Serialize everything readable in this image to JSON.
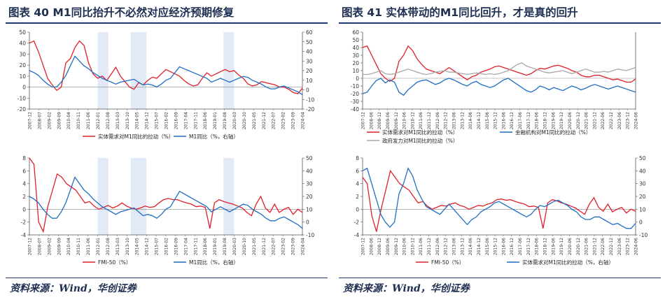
{
  "left": {
    "title": "图表 40   M1同比抬升不必然对应经济预期修复",
    "source": "资料来源：Wind，华创证券"
  },
  "right": {
    "title": "图表 41   实体带动的M1同比回升，才是真的回升",
    "source": "资料来源：Wind，华创证券"
  },
  "colors": {
    "red": "#e0202a",
    "blue": "#1f6fc4",
    "gray": "#a8a8a8",
    "shade": "#dde6f6"
  },
  "chart_data": [
    {
      "id": "c40a",
      "type": "line",
      "ylim": [
        -20,
        50
      ],
      "yticks": [
        -20,
        -10,
        0,
        10,
        20,
        30,
        40,
        50
      ],
      "y2lim": [
        -20,
        60
      ],
      "y2ticks": [
        -20,
        -10,
        0,
        10,
        20,
        30,
        40,
        50,
        60
      ],
      "xlabels": [
        "2007-12",
        "2008-07",
        "2009-02",
        "2009-09",
        "2010-04",
        "2010-11",
        "2011-06",
        "2012-01",
        "2012-08",
        "2013-03",
        "2013-10",
        "2014-05",
        "2014-12",
        "2015-07",
        "2016-02",
        "2016-09",
        "2017-04",
        "2017-11",
        "2018-06",
        "2019-01",
        "2019-08",
        "2020-03",
        "2020-10",
        "2021-05",
        "2021-12",
        "2022-07",
        "2023-02",
        "2023-09",
        "2024-04"
      ],
      "shaded": [
        [
          7.0,
          8.1
        ],
        [
          10.4,
          12.0
        ],
        [
          19.9,
          21.0
        ]
      ],
      "legend": [
        "实体需求对M1同比的拉动（%）",
        "M1同比（%，右轴）"
      ],
      "series": [
        {
          "name": "实体需求对M1同比的拉动（%）",
          "axis": "left",
          "color": "red",
          "values": [
            40,
            42,
            32,
            20,
            8,
            2,
            -3,
            0,
            22,
            26,
            36,
            42,
            38,
            22,
            12,
            8,
            10,
            6,
            12,
            18,
            10,
            5,
            0,
            -2,
            4,
            2,
            6,
            9,
            8,
            12,
            16,
            14,
            12,
            10,
            6,
            3,
            1,
            2,
            8,
            13,
            10,
            12,
            14,
            16,
            14,
            15,
            11,
            8,
            3,
            1,
            2,
            5,
            4,
            3,
            2,
            0,
            0,
            -2,
            -5,
            -6,
            -1
          ]
        },
        {
          "name": "M1同比（%，右轴）",
          "axis": "right",
          "color": "blue",
          "values": [
            20,
            18,
            15,
            10,
            6,
            3,
            3,
            8,
            15,
            25,
            35,
            30,
            25,
            22,
            18,
            15,
            12,
            10,
            8,
            6,
            8,
            9,
            10,
            11,
            8,
            5,
            6,
            5,
            3,
            6,
            10,
            12,
            18,
            24,
            22,
            20,
            18,
            16,
            14,
            12,
            8,
            10,
            12,
            10,
            8,
            10,
            12,
            14,
            13,
            10,
            8,
            6,
            3,
            1,
            1,
            3,
            4,
            2,
            0,
            -2,
            -5
          ]
        }
      ]
    },
    {
      "id": "c40b",
      "type": "line",
      "ylim": [
        -4,
        8
      ],
      "yticks": [
        -4,
        -2,
        0,
        2,
        4,
        6,
        8
      ],
      "y2lim": [
        -10,
        50
      ],
      "y2ticks": [
        -10,
        0,
        10,
        20,
        30,
        40,
        50
      ],
      "xlabels": [
        "2007-12",
        "2008-07",
        "2009-02",
        "2009-09",
        "2010-04",
        "2010-11",
        "2011-06",
        "2012-01",
        "2012-08",
        "2013-03",
        "2013-10",
        "2014-05",
        "2014-12",
        "2015-07",
        "2016-02",
        "2016-09",
        "2017-04",
        "2017-11",
        "2018-06",
        "2019-01",
        "2019-08",
        "2020-03",
        "2020-10",
        "2021-05",
        "2021-12",
        "2022-07",
        "2023-02",
        "2023-09",
        "2024-04"
      ],
      "shaded": [
        [
          7.0,
          8.1
        ],
        [
          10.4,
          12.0
        ],
        [
          19.9,
          21.0
        ]
      ],
      "legend": [
        "FMI-50（%）",
        "M1同比（%，右轴）"
      ],
      "series": [
        {
          "name": "FMI-50（%）",
          "axis": "left",
          "color": "red",
          "values": [
            8,
            7,
            -2,
            -3.5,
            0.5,
            3,
            5.5,
            5,
            4,
            3.5,
            3,
            2,
            1,
            1.2,
            0.5,
            0,
            0.3,
            0.6,
            0.2,
            0.5,
            1,
            0.5,
            0.2,
            0,
            0.2,
            0.5,
            0.3,
            0.4,
            1,
            1.5,
            1.7,
            1.5,
            1.5,
            1.2,
            1,
            0.8,
            0.4,
            0.5,
            0.3,
            -3,
            1,
            1.5,
            1.2,
            1,
            0.8,
            0.5,
            0.2,
            -0.5,
            -1,
            0.8,
            2,
            0.2,
            -0.5,
            0.8,
            -0.5,
            0,
            0.3,
            -0.8,
            0,
            -0.5
          ]
        },
        {
          "name": "M1同比（%，右轴）",
          "axis": "right",
          "color": "blue",
          "values": [
            20,
            18,
            15,
            10,
            6,
            3,
            3,
            8,
            15,
            25,
            35,
            30,
            25,
            22,
            18,
            15,
            12,
            10,
            8,
            6,
            8,
            9,
            10,
            11,
            8,
            5,
            6,
            5,
            3,
            6,
            10,
            12,
            18,
            24,
            22,
            20,
            18,
            16,
            14,
            12,
            8,
            10,
            12,
            10,
            8,
            10,
            12,
            14,
            13,
            10,
            8,
            6,
            3,
            1,
            1,
            3,
            4,
            2,
            0,
            -2,
            -5
          ]
        }
      ]
    },
    {
      "id": "c41a",
      "type": "line",
      "ylim": [
        -40,
        60
      ],
      "yticks": [
        -40,
        -30,
        -20,
        -10,
        0,
        10,
        20,
        30,
        40,
        50,
        60
      ],
      "xlabels": [
        "2007-12",
        "2008-06",
        "2008-12",
        "2009-06",
        "2009-12",
        "2010-06",
        "2010-12",
        "2011-06",
        "2011-12",
        "2012-06",
        "2012-12",
        "2013-06",
        "2013-12",
        "2014-06",
        "2014-12",
        "2015-06",
        "2015-12",
        "2016-06",
        "2016-12",
        "2017-06",
        "2017-12",
        "2018-06",
        "2018-12",
        "2019-06",
        "2019-12",
        "2020-06",
        "2020-12",
        "2021-06",
        "2021-12",
        "2022-06",
        "2022-12",
        "2023-06",
        "2023-12",
        "2024-06"
      ],
      "shaded": [],
      "legend": [
        "实体需求对M1同比的拉动（%）",
        "金融机构对M1同比的拉动（%）",
        "政府发力对M1同比的拉动（%）"
      ],
      "series": [
        {
          "name": "实体需求对M1同比的拉动（%）",
          "axis": "left",
          "color": "red",
          "values": [
            40,
            42,
            30,
            18,
            6,
            0,
            -4,
            0,
            22,
            30,
            42,
            36,
            25,
            18,
            12,
            10,
            8,
            6,
            10,
            14,
            10,
            6,
            2,
            -2,
            2,
            4,
            8,
            10,
            12,
            15,
            16,
            14,
            12,
            10,
            8,
            6,
            4,
            6,
            10,
            13,
            12,
            14,
            16,
            17,
            15,
            13,
            10,
            8,
            4,
            2,
            2,
            4,
            4,
            2,
            0,
            -2,
            -1,
            -3,
            -5,
            -5,
            -1
          ]
        },
        {
          "name": "金融机构对M1同比的拉动（%）",
          "axis": "left",
          "color": "blue",
          "values": [
            -20,
            -18,
            -10,
            -3,
            0,
            -6,
            -2,
            -5,
            -18,
            -22,
            -15,
            -10,
            -5,
            -3,
            -2,
            -5,
            -8,
            -6,
            -2,
            0,
            -2,
            -5,
            -8,
            -10,
            -6,
            -4,
            -8,
            -10,
            -12,
            -10,
            -6,
            -2,
            0,
            -4,
            -8,
            -12,
            -16,
            -18,
            -15,
            -10,
            -12,
            -15,
            -12,
            -14,
            -16,
            -13,
            -10,
            -12,
            -15,
            -13,
            -10,
            -8,
            -10,
            -12,
            -14,
            -12,
            -10,
            -12,
            -14,
            -16,
            -18
          ]
        },
        {
          "name": "政府发力对M1同比的拉动（%）",
          "axis": "left",
          "color": "gray",
          "values": [
            5,
            5,
            6,
            8,
            10,
            6,
            5,
            6,
            8,
            10,
            12,
            10,
            8,
            6,
            5,
            6,
            8,
            9,
            10,
            8,
            8,
            7,
            6,
            5,
            6,
            7,
            6,
            5,
            6,
            5,
            6,
            8,
            10,
            14,
            18,
            20,
            16,
            14,
            12,
            10,
            8,
            7,
            8,
            9,
            10,
            8,
            6,
            8,
            10,
            12,
            10,
            8,
            8,
            9,
            8,
            10,
            12,
            11,
            10,
            12,
            14
          ]
        }
      ]
    },
    {
      "id": "c41b",
      "type": "line",
      "ylim": [
        -4,
        8
      ],
      "yticks": [
        -4,
        -2,
        0,
        2,
        4,
        6,
        8
      ],
      "y2lim": [
        -10,
        50
      ],
      "y2ticks": [
        -10,
        0,
        10,
        20,
        30,
        40,
        50
      ],
      "xlabels": [
        "2007-12",
        "2008-06",
        "2008-12",
        "2009-06",
        "2009-12",
        "2010-06",
        "2010-12",
        "2011-06",
        "2011-12",
        "2012-06",
        "2012-12",
        "2013-06",
        "2013-12",
        "2014-06",
        "2014-12",
        "2015-06",
        "2015-12",
        "2016-06",
        "2016-12",
        "2017-06",
        "2017-12",
        "2018-06",
        "2018-12",
        "2019-06",
        "2019-12",
        "2020-06",
        "2020-12",
        "2021-06",
        "2021-12",
        "2022-06",
        "2022-12",
        "2023-06",
        "2023-12",
        "2024-06"
      ],
      "shaded": [],
      "legend": [
        "FMI-50（%）",
        "实体需求对M1同比的拉动（%，右轴）"
      ],
      "series": [
        {
          "name": "FMI-50（%）",
          "axis": "left",
          "color": "red",
          "values": [
            5,
            4,
            -1,
            -3.5,
            0,
            3,
            6,
            5,
            4,
            3.5,
            3,
            2,
            1,
            1.2,
            0.5,
            0,
            0.3,
            0.6,
            0.5,
            0.8,
            1,
            0.6,
            0.4,
            0,
            0.3,
            0.6,
            0.5,
            0.8,
            1,
            1.5,
            1.6,
            1.4,
            1.5,
            1.2,
            1,
            0.8,
            0.4,
            0.5,
            0.3,
            -3,
            1,
            1.5,
            1.3,
            1,
            0.8,
            0.5,
            0.2,
            -0.3,
            -0.8,
            0.8,
            1.8,
            0.3,
            -0.3,
            0.8,
            -0.4,
            0,
            0.3,
            -0.6,
            0,
            -0.3
          ]
        },
        {
          "name": "实体需求对M1同比的拉动（%，右轴）",
          "axis": "right",
          "color": "blue",
          "values": [
            40,
            42,
            30,
            18,
            6,
            0,
            -4,
            0,
            22,
            30,
            42,
            36,
            25,
            18,
            12,
            10,
            8,
            6,
            10,
            14,
            10,
            6,
            2,
            -2,
            2,
            4,
            8,
            10,
            12,
            15,
            16,
            14,
            12,
            10,
            8,
            6,
            4,
            6,
            10,
            13,
            12,
            14,
            16,
            17,
            15,
            13,
            10,
            8,
            4,
            2,
            2,
            4,
            4,
            2,
            0,
            -2,
            -1,
            -3,
            -5,
            -5,
            -1
          ]
        }
      ]
    }
  ]
}
